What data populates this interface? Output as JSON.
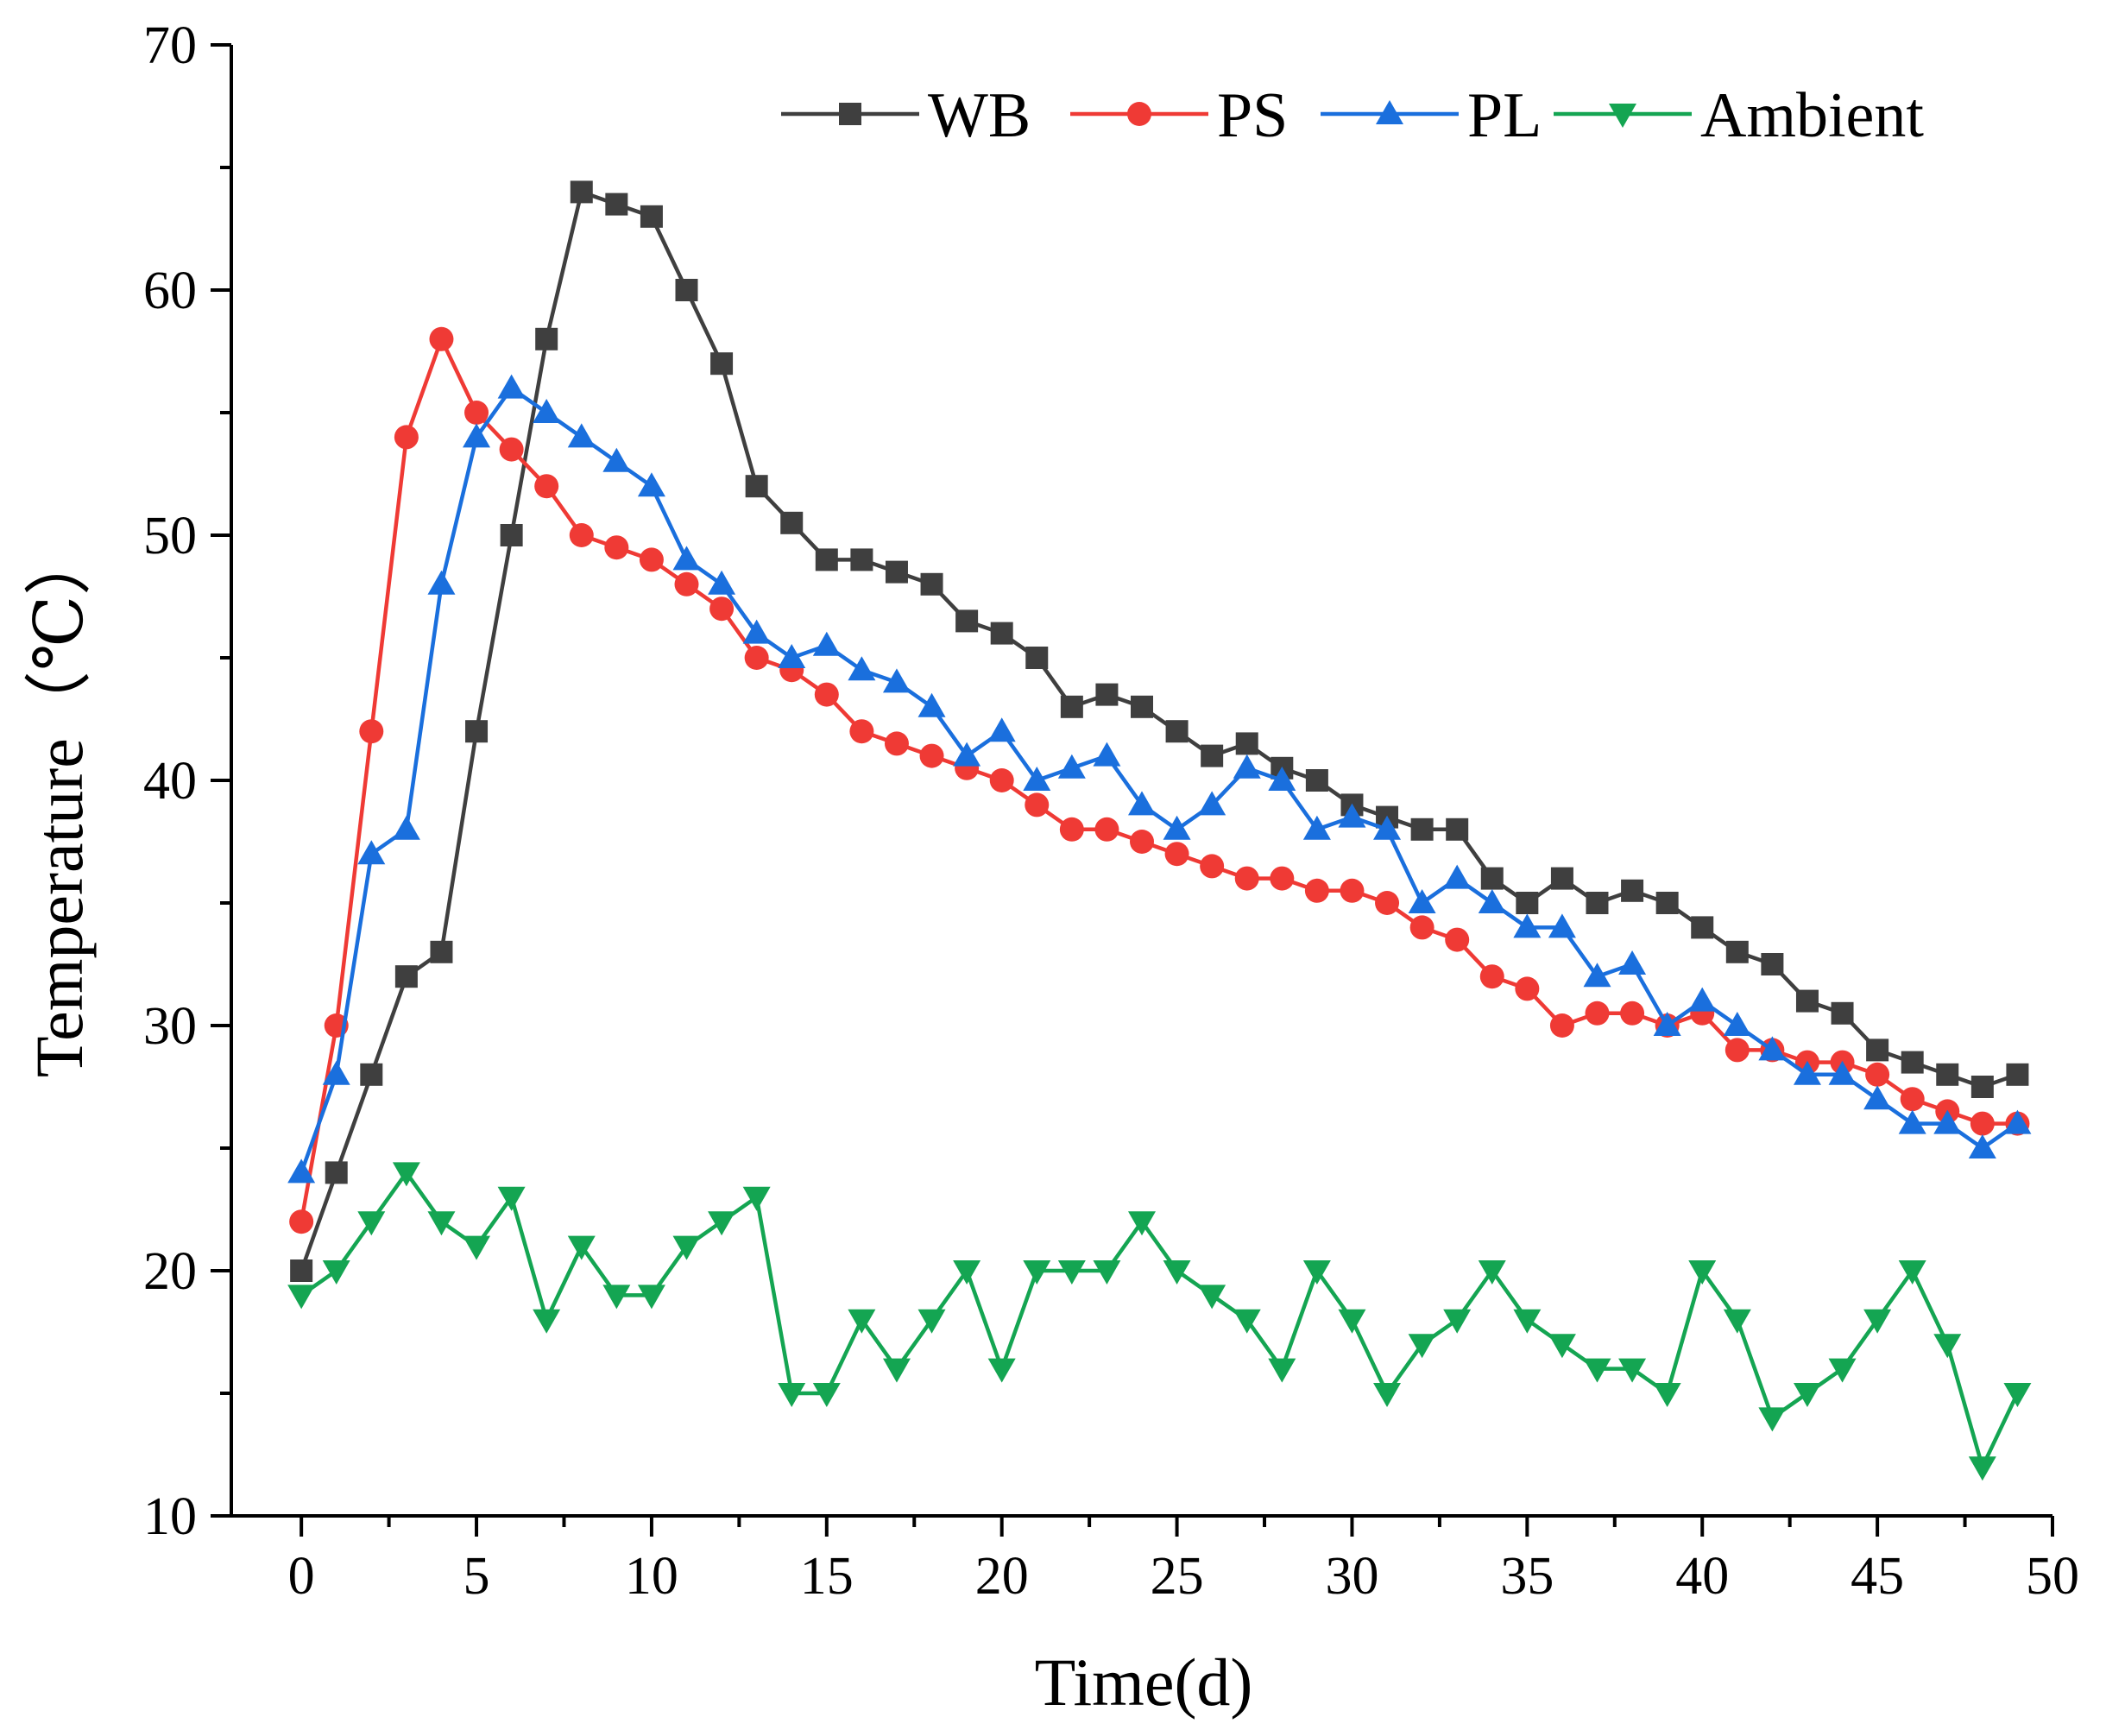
{
  "chart_data": {
    "type": "line",
    "title": "",
    "xlabel": "Time(d)",
    "ylabel": "Temperature（℃）",
    "xlim": [
      -2,
      50
    ],
    "ylim": [
      10,
      70
    ],
    "xticks": [
      0,
      5,
      10,
      15,
      20,
      25,
      30,
      35,
      40,
      45,
      50
    ],
    "yticks": [
      10,
      20,
      30,
      40,
      50,
      60,
      70
    ],
    "grid": false,
    "legend_position": "top-right",
    "x": [
      0,
      1,
      2,
      3,
      4,
      5,
      6,
      7,
      8,
      9,
      10,
      11,
      12,
      13,
      14,
      15,
      16,
      17,
      18,
      19,
      20,
      21,
      22,
      23,
      24,
      25,
      26,
      27,
      28,
      29,
      30,
      31,
      32,
      33,
      34,
      35,
      36,
      37,
      38,
      39,
      40,
      41,
      42,
      43,
      44,
      45,
      46,
      47,
      48,
      49
    ],
    "series": [
      {
        "name": "WB",
        "color": "#3f3f3f",
        "marker": "square",
        "values": [
          20,
          24,
          28,
          32,
          33,
          42,
          50,
          58,
          64,
          63.5,
          63,
          60,
          57,
          52,
          50.5,
          49,
          49,
          48.5,
          48,
          46.5,
          46,
          45,
          43,
          43.5,
          43,
          42,
          41,
          41.5,
          40.5,
          40,
          39,
          38.5,
          38,
          38,
          36,
          35,
          36,
          35,
          35.5,
          35,
          34,
          33,
          32.5,
          31,
          30.5,
          29,
          28.5,
          28,
          27.5,
          28
        ]
      },
      {
        "name": "PS",
        "color": "#ef3a35",
        "marker": "circle",
        "values": [
          22,
          30,
          42,
          54,
          58,
          55,
          53.5,
          52,
          50,
          49.5,
          49,
          48,
          47,
          45,
          44.5,
          43.5,
          42,
          41.5,
          41,
          40.5,
          40,
          39,
          38,
          38,
          37.5,
          37,
          36.5,
          36,
          36,
          35.5,
          35.5,
          35,
          34,
          33.5,
          32,
          31.5,
          30,
          30.5,
          30.5,
          30,
          30.5,
          29,
          29,
          28.5,
          28.5,
          28,
          27,
          26.5,
          26,
          26
        ]
      },
      {
        "name": "PL",
        "color": "#1a6fdd",
        "marker": "triangle-up",
        "values": [
          24,
          28,
          37,
          38,
          48,
          54,
          56,
          55,
          54,
          53,
          52,
          49,
          48,
          46,
          45,
          45.5,
          44.5,
          44,
          43,
          41,
          42,
          40,
          40.5,
          41,
          39,
          38,
          39,
          40.5,
          40,
          38,
          38.5,
          38,
          35,
          36,
          35,
          34,
          34,
          32,
          32.5,
          30,
          31,
          30,
          29,
          28,
          28,
          27,
          26,
          26,
          25,
          26
        ]
      },
      {
        "name": "Ambient",
        "color": "#14a552",
        "marker": "triangle-down",
        "values": [
          19,
          20,
          22,
          24,
          22,
          21,
          23,
          18,
          21,
          19,
          19,
          21,
          22,
          23,
          15,
          15,
          18,
          16,
          18,
          20,
          16,
          20,
          20,
          20,
          22,
          20,
          19,
          18,
          16,
          20,
          18,
          15,
          17,
          18,
          20,
          18,
          17,
          16,
          16,
          15,
          20,
          18,
          14,
          15,
          16,
          18,
          20,
          17,
          12,
          15
        ]
      }
    ]
  }
}
